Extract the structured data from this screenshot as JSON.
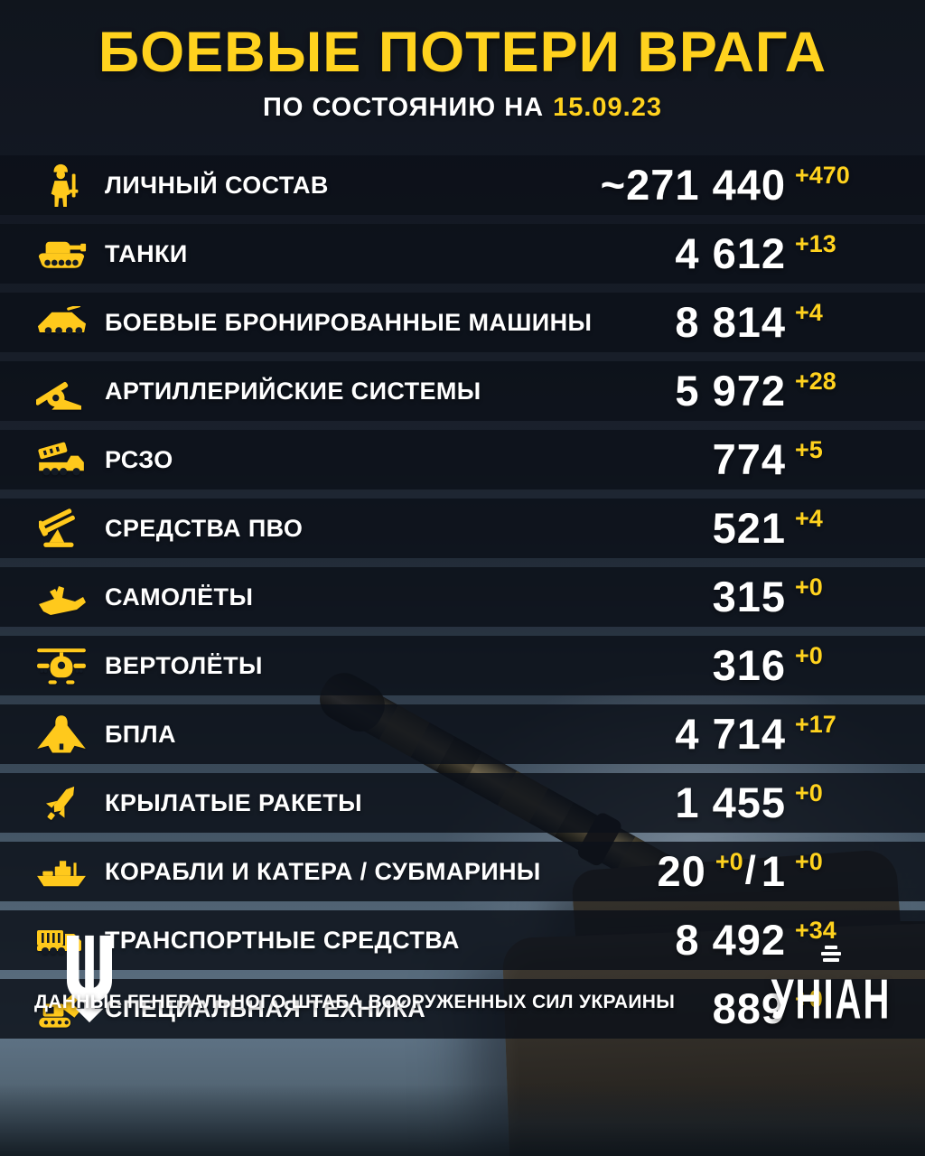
{
  "header": {
    "title": "БОЕВЫЕ ПОТЕРИ ВРАГА",
    "subtitle_prefix": "ПО СОСТОЯНИЮ НА",
    "date": "15.09.23"
  },
  "rows": [
    {
      "icon": "soldier-icon",
      "label": "ЛИЧНЫЙ СОСТАВ",
      "value": "~271 440",
      "delta": "+470"
    },
    {
      "icon": "tank-icon",
      "label": "ТАНКИ",
      "value": "4 612",
      "delta": "+13"
    },
    {
      "icon": "apc-icon",
      "label": "БОЕВЫЕ БРОНИРОВАННЫЕ МАШИНЫ",
      "value": "8 814",
      "delta": "+4"
    },
    {
      "icon": "artillery-icon",
      "label": "АРТИЛЛЕРИЙСКИЕ СИСТЕМЫ",
      "value": "5 972",
      "delta": "+28"
    },
    {
      "icon": "mlrs-icon",
      "label": "РСЗО",
      "value": "774",
      "delta": "+5"
    },
    {
      "icon": "air-defense-icon",
      "label": "СРЕДСТВА ПВО",
      "value": "521",
      "delta": "+4"
    },
    {
      "icon": "jet-icon",
      "label": "САМОЛЁТЫ",
      "value": "315",
      "delta": "+0"
    },
    {
      "icon": "helicopter-icon",
      "label": "ВЕРТОЛЁТЫ",
      "value": "316",
      "delta": "+0"
    },
    {
      "icon": "drone-icon",
      "label": "БПЛА",
      "value": "4 714",
      "delta": "+17"
    },
    {
      "icon": "cruise-missile-icon",
      "label": "КРЫЛАТЫЕ РАКЕТЫ",
      "value": "1 455",
      "delta": "+0"
    },
    {
      "icon": "ship-icon",
      "label": "КОРАБЛИ И КАТЕРА / СУБМАРИНЫ",
      "value": "20",
      "delta": "+0",
      "separator": "/",
      "value2": "1",
      "delta2": "+0"
    },
    {
      "icon": "truck-icon",
      "label": "ТРАНСПОРТНЫЕ СРЕДСТВА",
      "value": "8 492",
      "delta": "+34"
    },
    {
      "icon": "excavator-icon",
      "label": "СПЕЦИАЛЬНАЯ ТЕХНИКА",
      "value": "889",
      "delta": "+0"
    }
  ],
  "footer": {
    "source": "ДАННЫЕ ГЕНЕРАЛЬНОГО ШТАБА ВООРУЖЕННЫХ СИЛ УКРАИНЫ",
    "logo": "УНІАН"
  },
  "colors": {
    "accent_yellow": "#FFD21E",
    "bar_background": "#0C1119",
    "background_top": "#10151D",
    "background_bottom": "#5D7183",
    "text_white": "#FFFFFF"
  },
  "chart_data": {
    "type": "table",
    "title": "БОЕВЫЕ ПОТЕРИ ВРАГА",
    "subtitle": "ПО СОСТОЯНИЮ НА 15.09.23",
    "categories": [
      "ЛИЧНЫЙ СОСТАВ",
      "ТАНКИ",
      "БОЕВЫЕ БРОНИРОВАННЫЕ МАШИНЫ",
      "АРТИЛЛЕРИЙСКИЕ СИСТЕМЫ",
      "РСЗО",
      "СРЕДСТВА ПВО",
      "САМОЛЁТЫ",
      "ВЕРТОЛЁТЫ",
      "БПЛА",
      "КРЫЛАТЫЕ РАКЕТЫ",
      "КОРАБЛИ И КАТЕРА",
      "СУБМАРИНЫ",
      "ТРАНСПОРТНЫЕ СРЕДСТВА",
      "СПЕЦИАЛЬНАЯ ТЕХНИКА"
    ],
    "values": [
      271440,
      4612,
      8814,
      5972,
      774,
      521,
      315,
      316,
      4714,
      1455,
      20,
      1,
      8492,
      889
    ],
    "daily_change": [
      470,
      13,
      4,
      28,
      5,
      4,
      0,
      0,
      17,
      0,
      0,
      0,
      34,
      0
    ],
    "source": "ДАННЫЕ ГЕНЕРАЛЬНОГО ШТАБА ВООРУЖЕННЫХ СИЛ УКРАИНЫ"
  }
}
